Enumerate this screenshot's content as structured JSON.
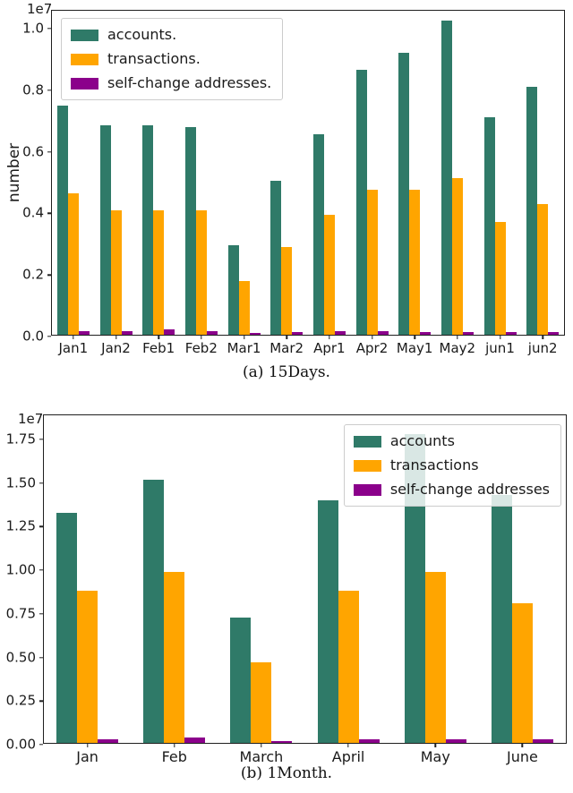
{
  "colors": {
    "accounts": "#2f7a68",
    "transactions": "#ffa500",
    "self_change": "#8b008b",
    "spine": "#1f1f1f",
    "legend_border": "#cccccc"
  },
  "chart_data": [
    {
      "type": "bar",
      "caption": "(a) 15Days.",
      "ylabel": "number",
      "y_multiplier": "1e7",
      "unit_note": "values are in units of 1e7",
      "categories": [
        "Jan1",
        "Jan2",
        "Feb1",
        "Feb2",
        "Mar1",
        "Mar2",
        "Apr1",
        "Apr2",
        "May1",
        "May2",
        "jun1",
        "jun2"
      ],
      "series": [
        {
          "name": "accounts.",
          "color_key": "accounts",
          "values": [
            0.745,
            0.68,
            0.68,
            0.675,
            0.29,
            0.5,
            0.65,
            0.86,
            0.915,
            1.02,
            0.705,
            0.805
          ]
        },
        {
          "name": "transactions.",
          "color_key": "transactions",
          "values": [
            0.46,
            0.405,
            0.405,
            0.405,
            0.175,
            0.285,
            0.39,
            0.47,
            0.47,
            0.51,
            0.365,
            0.425
          ]
        },
        {
          "name": "self-change addresses.",
          "color_key": "self_change",
          "values": [
            0.012,
            0.013,
            0.018,
            0.013,
            0.006,
            0.008,
            0.012,
            0.013,
            0.009,
            0.01,
            0.008,
            0.01
          ]
        }
      ],
      "ytick_values": [
        0.0,
        0.2,
        0.4,
        0.6,
        0.8,
        1.0
      ],
      "ytick_labels": [
        "0.0",
        "0.2",
        "0.4",
        "0.6",
        "0.8",
        "1.0"
      ],
      "ylim": [
        0,
        1.058
      ],
      "legend_position": "upper-left",
      "grid": false
    },
    {
      "type": "bar",
      "caption": "(b) 1Month.",
      "ylabel": "",
      "y_multiplier": "1e7",
      "unit_note": "values are in units of 1e7",
      "categories": [
        "Jan",
        "Feb",
        "March",
        "April",
        "May",
        "June"
      ],
      "series": [
        {
          "name": "accounts",
          "color_key": "accounts",
          "values": [
            1.32,
            1.51,
            0.72,
            1.39,
            1.77,
            1.42
          ]
        },
        {
          "name": "transactions",
          "color_key": "transactions",
          "values": [
            0.87,
            0.98,
            0.46,
            0.87,
            0.98,
            0.8
          ]
        },
        {
          "name": "self-change addresses",
          "color_key": "self_change",
          "values": [
            0.02,
            0.03,
            0.01,
            0.02,
            0.02,
            0.02
          ]
        }
      ],
      "ytick_values": [
        0.0,
        0.25,
        0.5,
        0.75,
        1.0,
        1.25,
        1.5,
        1.75
      ],
      "ytick_labels": [
        "0.00",
        "0.25",
        "0.50",
        "0.75",
        "1.00",
        "1.25",
        "1.50",
        "1.75"
      ],
      "ylim": [
        0,
        1.887
      ],
      "legend_position": "upper-right",
      "grid": false
    }
  ]
}
